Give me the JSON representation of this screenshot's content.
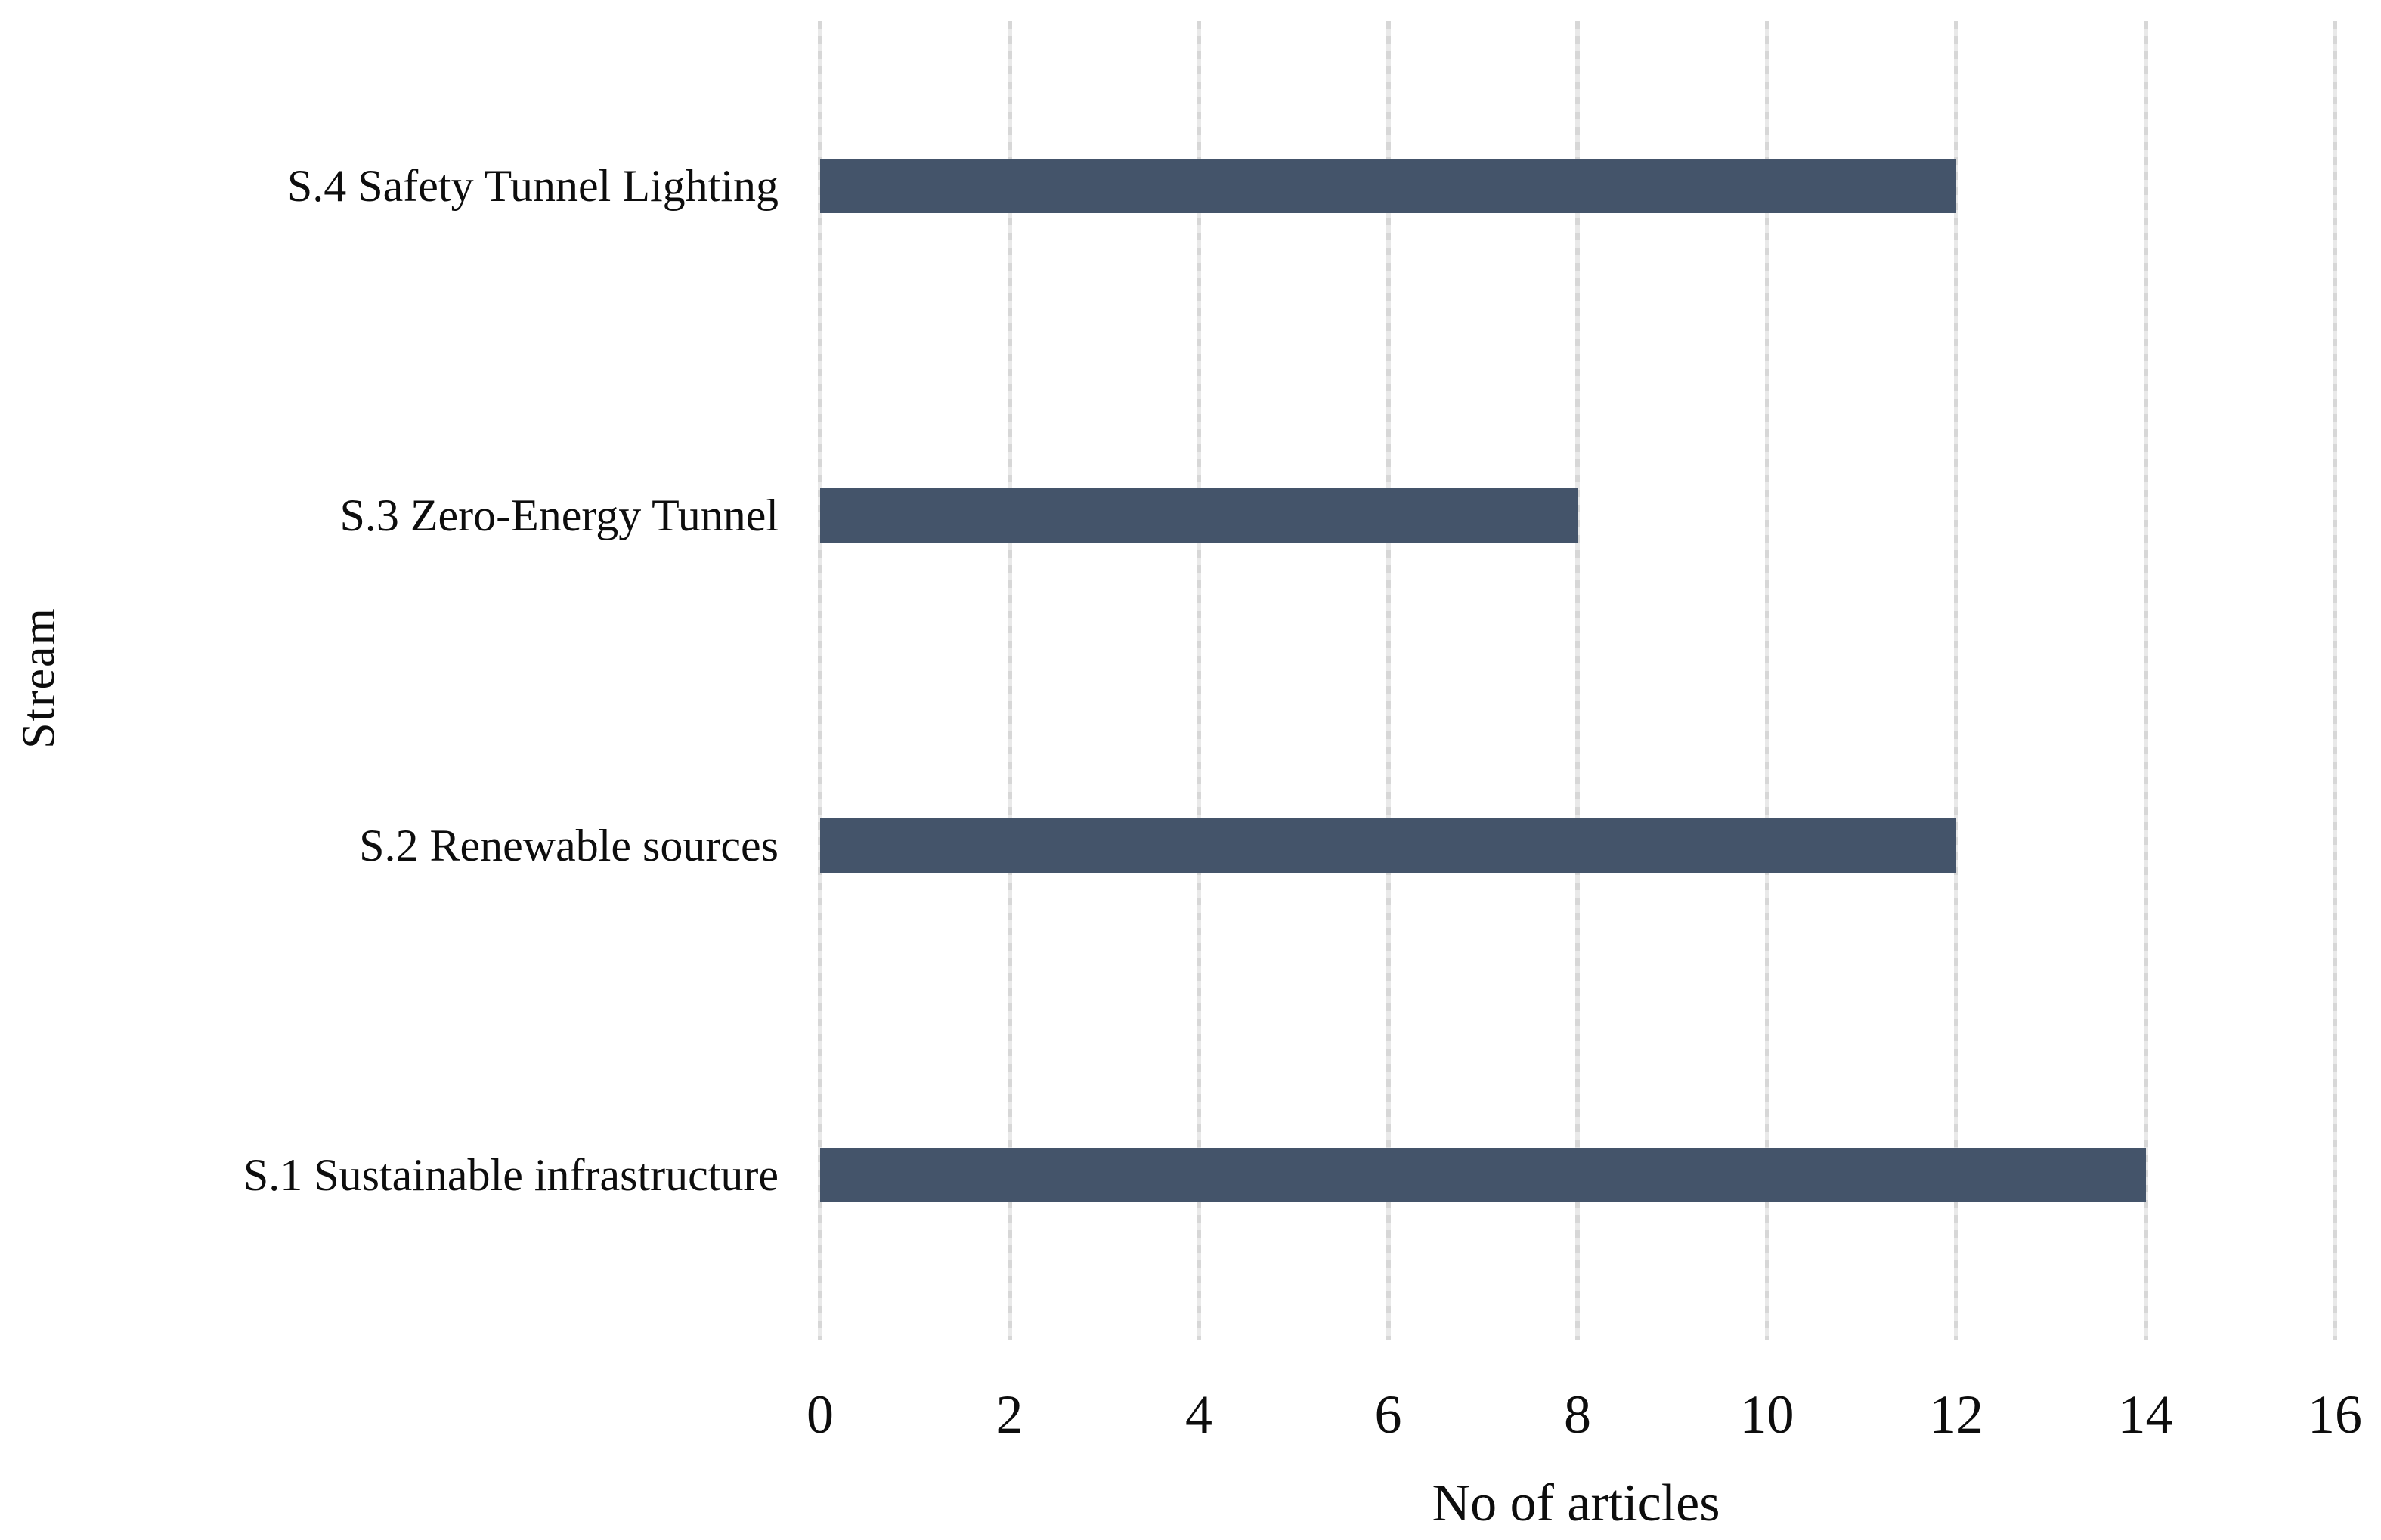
{
  "figure": {
    "background": "#ffffff",
    "text_color": "#0d0d0d"
  },
  "chart_data": {
    "type": "bar",
    "orientation": "horizontal",
    "title": "",
    "xlabel": "No of articles",
    "ylabel": "Stream",
    "categories_top_to_bottom": [
      "S.4 Safety Tunnel Lighting",
      "S.3 Zero-Energy Tunnel",
      "S.2 Renewable sources",
      "S.1 Sustainable infrastructure"
    ],
    "values": [
      12,
      8,
      12,
      14
    ],
    "xlim": [
      0,
      16
    ],
    "xticks": [
      0,
      2,
      4,
      6,
      8,
      10,
      12,
      14,
      16
    ],
    "grid": "vertical-only",
    "legend": "none",
    "bar_color": "#44546A",
    "gridline_color": "#d9d9d9"
  }
}
